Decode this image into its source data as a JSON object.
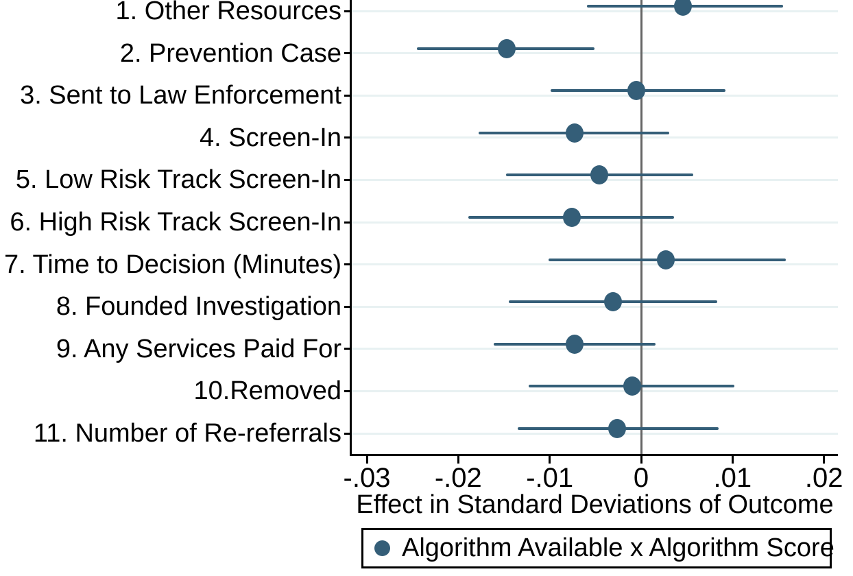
{
  "chart_data": {
    "type": "scatter",
    "subtype": "coefficient-plot-with-95ci",
    "title": "",
    "xlabel": "Effect in Standard Deviations of Outcome",
    "ylabel": "",
    "categories": [
      "1. Other Resources",
      "2. Prevention Case",
      "3. Sent to Law Enforcement",
      "4. Screen-In",
      "5. Low Risk Track Screen-In",
      "6. High Risk Track Screen-In",
      "7. Time to Decision (Minutes)",
      "8. Founded Investigation",
      "9. Any Services Paid For",
      "10.Removed",
      "11. Number of Re-referrals"
    ],
    "series": [
      {
        "name": "Algorithm Available x Algorithm Score",
        "estimates": [
          0.0046,
          -0.0147,
          -0.0005,
          -0.0073,
          -0.0046,
          -0.0076,
          0.0027,
          -0.0031,
          -0.0073,
          -0.001,
          -0.0026
        ],
        "ci_low": [
          -0.0059,
          -0.0245,
          -0.0099,
          -0.0178,
          -0.0148,
          -0.0189,
          -0.0101,
          -0.0145,
          -0.0161,
          -0.0123,
          -0.0135
        ],
        "ci_high": [
          0.0155,
          -0.0051,
          0.0092,
          0.0031,
          0.0057,
          0.0036,
          0.0158,
          0.0083,
          0.0016,
          0.0102,
          0.0085
        ]
      }
    ],
    "xticks": [
      -0.03,
      -0.02,
      -0.01,
      0,
      0.01,
      0.02
    ],
    "xtick_labels": [
      "-.03",
      "-.02",
      "-.01",
      "0",
      ".01",
      ".02"
    ],
    "xlim": [
      -0.0316,
      0.0215
    ],
    "zero_reference_line": true,
    "grid": "horizontal",
    "legend_position": "bottom"
  },
  "legend": {
    "label": "Algorithm Available x Algorithm Score"
  },
  "axis": {
    "x_title": "Effect in Standard Deviations of Outcome"
  },
  "colors": {
    "marker": "#345e78",
    "gridline": "#e8f1f2",
    "zero_line": "#656565",
    "axis": "#000000",
    "background": "#ffffff"
  }
}
